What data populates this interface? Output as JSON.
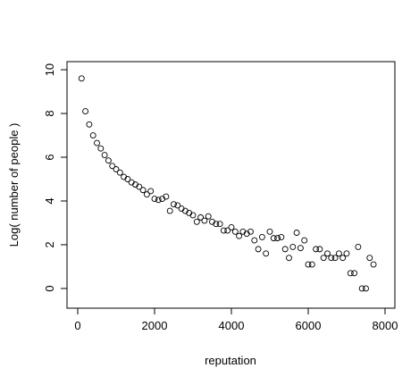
{
  "chart_data": {
    "type": "scatter",
    "x_label": "reputation",
    "y_label": "Log( number of people )",
    "color": "#000000",
    "xlim": [
      -279,
      8256
    ],
    "ylim": [
      -0.9,
      10.37
    ],
    "xticks": [
      0,
      2000,
      4000,
      6000,
      8000
    ],
    "yticks": [
      0,
      2,
      4,
      6,
      8,
      10
    ],
    "x": [
      100,
      200,
      300,
      400,
      500,
      600,
      700,
      800,
      900,
      1000,
      1100,
      1200,
      1300,
      1400,
      1500,
      1600,
      1700,
      1800,
      1900,
      2000,
      2100,
      2200,
      2300,
      2400,
      2500,
      2600,
      2700,
      2800,
      2900,
      3000,
      3100,
      3200,
      3300,
      3400,
      3500,
      3600,
      3700,
      3800,
      3900,
      4000,
      4100,
      4200,
      4300,
      4400,
      4500,
      4600,
      4700,
      4800,
      4900,
      5000,
      5100,
      5200,
      5300,
      5400,
      5500,
      5600,
      5700,
      5800,
      5900,
      6000,
      6100,
      6200,
      6300,
      6400,
      6500,
      6600,
      6700,
      6800,
      6900,
      7000,
      7100,
      7200,
      7300,
      7400,
      7500,
      7600,
      7700
    ],
    "values": [
      9.6,
      8.1,
      7.5,
      7.0,
      6.65,
      6.4,
      6.1,
      5.85,
      5.6,
      5.45,
      5.3,
      5.1,
      5.0,
      4.85,
      4.75,
      4.65,
      4.5,
      4.3,
      4.45,
      4.1,
      4.05,
      4.1,
      4.2,
      3.55,
      3.85,
      3.8,
      3.65,
      3.55,
      3.45,
      3.35,
      3.05,
      3.25,
      3.1,
      3.3,
      3.05,
      2.95,
      2.95,
      2.65,
      2.65,
      2.8,
      2.6,
      2.4,
      2.6,
      2.5,
      2.6,
      2.2,
      1.8,
      2.35,
      1.6,
      2.6,
      2.3,
      2.3,
      2.35,
      1.8,
      1.4,
      1.9,
      2.55,
      1.85,
      2.2,
      1.1,
      1.1,
      1.8,
      1.8,
      1.4,
      1.6,
      1.4,
      1.4,
      1.6,
      1.4,
      1.6,
      0.7,
      0.7,
      1.9,
      0,
      0,
      1.4,
      1.1
    ]
  }
}
